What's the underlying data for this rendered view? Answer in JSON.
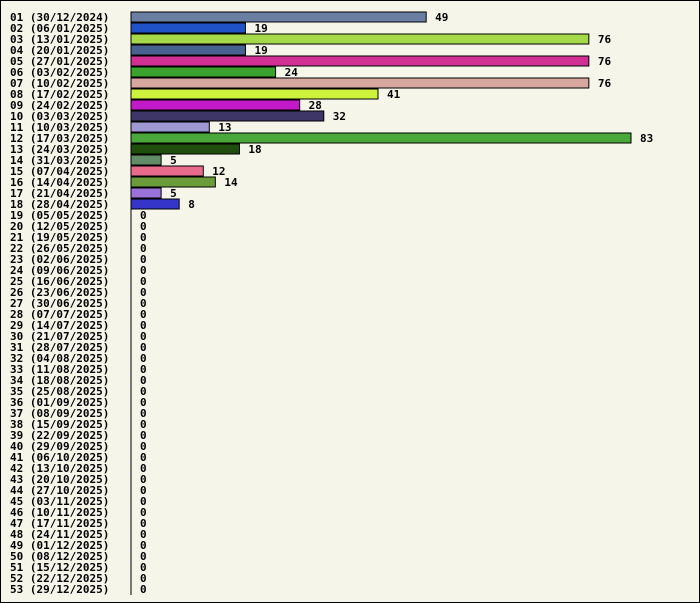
{
  "chart_data": {
    "type": "bar",
    "orientation": "horizontal",
    "title": "",
    "xlabel": "",
    "ylabel": "",
    "grid": false,
    "legend": "none",
    "categories": [
      "01 (30/12/2024)",
      "02 (06/01/2025)",
      "03 (13/01/2025)",
      "04 (20/01/2025)",
      "05 (27/01/2025)",
      "06 (03/02/2025)",
      "07 (10/02/2025)",
      "08 (17/02/2025)",
      "09 (24/02/2025)",
      "10 (03/03/2025)",
      "11 (10/03/2025)",
      "12 (17/03/2025)",
      "13 (24/03/2025)",
      "14 (31/03/2025)",
      "15 (07/04/2025)",
      "16 (14/04/2025)",
      "17 (21/04/2025)",
      "18 (28/04/2025)",
      "19 (05/05/2025)",
      "20 (12/05/2025)",
      "21 (19/05/2025)",
      "22 (26/05/2025)",
      "23 (02/06/2025)",
      "24 (09/06/2025)",
      "25 (16/06/2025)",
      "26 (23/06/2025)",
      "27 (30/06/2025)",
      "28 (07/07/2025)",
      "29 (14/07/2025)",
      "30 (21/07/2025)",
      "31 (28/07/2025)",
      "32 (04/08/2025)",
      "33 (11/08/2025)",
      "34 (18/08/2025)",
      "35 (25/08/2025)",
      "36 (01/09/2025)",
      "37 (08/09/2025)",
      "38 (15/09/2025)",
      "39 (22/09/2025)",
      "40 (29/09/2025)",
      "41 (06/10/2025)",
      "42 (13/10/2025)",
      "43 (20/10/2025)",
      "44 (27/10/2025)",
      "45 (03/11/2025)",
      "46 (10/11/2025)",
      "47 (17/11/2025)",
      "48 (24/11/2025)",
      "49 (01/12/2025)",
      "50 (08/12/2025)",
      "51 (15/12/2025)",
      "52 (22/12/2025)",
      "53 (29/12/2025)"
    ],
    "values": [
      49,
      19,
      76,
      19,
      76,
      24,
      76,
      41,
      28,
      32,
      13,
      83,
      18,
      5,
      12,
      14,
      5,
      8,
      0,
      0,
      0,
      0,
      0,
      0,
      0,
      0,
      0,
      0,
      0,
      0,
      0,
      0,
      0,
      0,
      0,
      0,
      0,
      0,
      0,
      0,
      0,
      0,
      0,
      0,
      0,
      0,
      0,
      0,
      0,
      0,
      0,
      0,
      0
    ],
    "value_labels": [
      "49",
      "19",
      "76",
      "19",
      "76",
      "24",
      "76",
      "41",
      "28",
      "32",
      "13",
      "83",
      "18",
      "5",
      "12",
      "14",
      "5",
      "8",
      "0",
      "0",
      "0",
      "0",
      "0",
      "0",
      "0",
      "0",
      "0",
      "0",
      "0",
      "0",
      "0",
      "0",
      "0",
      "0",
      "0",
      "0",
      "0",
      "0",
      "0",
      "0",
      "0",
      "0",
      "0",
      "0",
      "0",
      "0",
      "0",
      "0",
      "0",
      "0",
      "0",
      "0",
      "0"
    ],
    "colors": [
      "#6b7fa3",
      "#1f52c7",
      "#a6d94a",
      "#476291",
      "#d12f93",
      "#3aa32e",
      "#d6a79e",
      "#ccf23d",
      "#c21ac9",
      "#3d3666",
      "#9e97d1",
      "#4aa83a",
      "#1e4d0d",
      "#618c66",
      "#e86b8c",
      "#6b9c3a",
      "#9a72d9",
      "#3535c9"
    ],
    "xlim": [
      0,
      83
    ]
  }
}
